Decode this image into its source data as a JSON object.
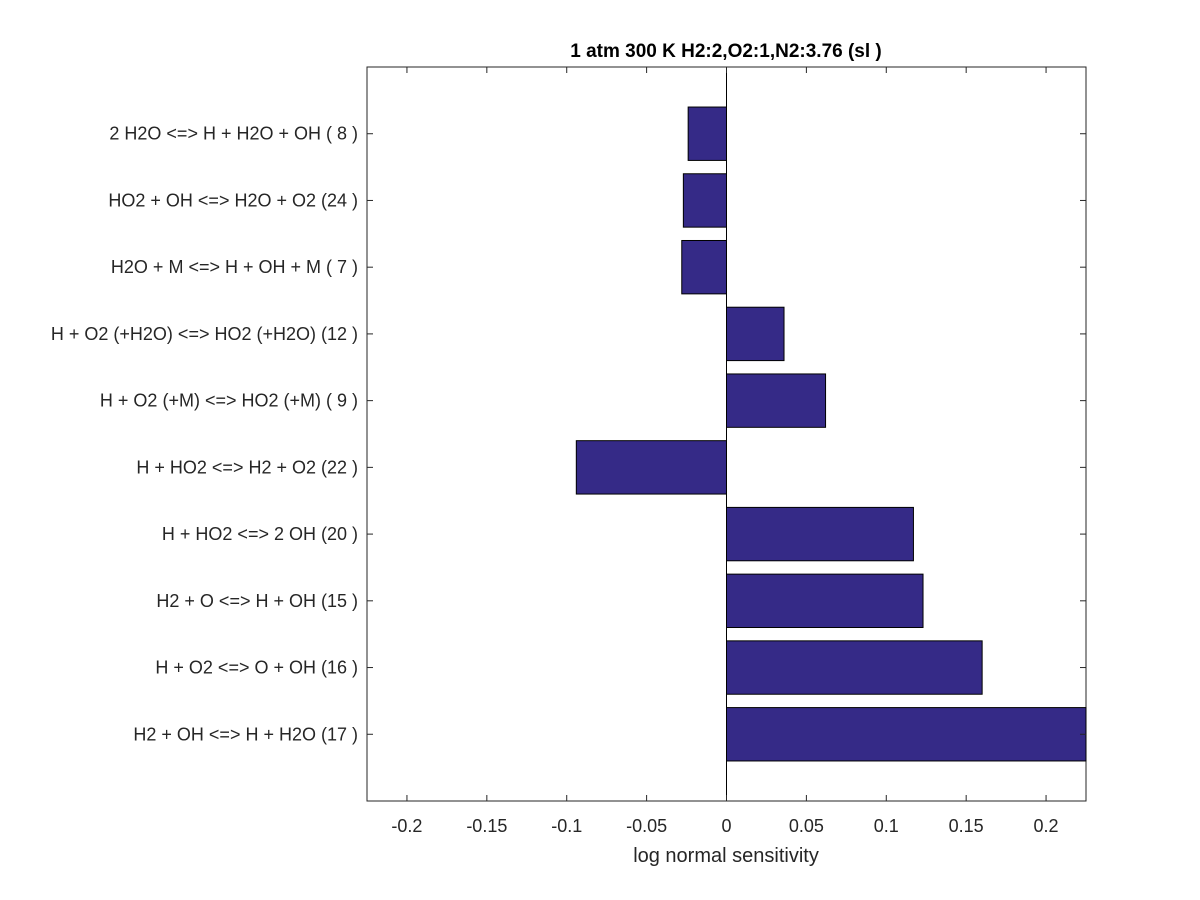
{
  "chart_data": {
    "type": "bar",
    "orientation": "horizontal",
    "title": "1 atm 300 K H2:2,O2:1,N2:3.76 (sl )",
    "xlabel": "log normal sensitivity",
    "ylabel": "",
    "xlim": [
      -0.225,
      0.225
    ],
    "xticks": [
      -0.2,
      -0.15,
      -0.1,
      -0.05,
      0,
      0.05,
      0.1,
      0.15,
      0.2
    ],
    "xtick_labels": [
      "-0.2",
      "-0.15",
      "-0.1",
      "-0.05",
      "0",
      "0.05",
      "0.1",
      "0.15",
      "0.2"
    ],
    "categories": [
      "2 H2O <=> H + H2O + OH ( 8 )",
      "HO2 + OH <=> H2O + O2 (24 )",
      "H2O + M <=> H + OH + M ( 7 )",
      "H + O2 (+H2O) <=> HO2 (+H2O) (12 )",
      "H + O2 (+M) <=> HO2 (+M) ( 9 )",
      "H + HO2 <=> H2 + O2 (22 )",
      "H + HO2 <=> 2 OH (20 )",
      "H2 + O <=> H + OH (15 )",
      "H + O2 <=> O + OH (16 )",
      "H2 + OH <=> H + H2O (17 )"
    ],
    "values": [
      -0.024,
      -0.027,
      -0.028,
      0.036,
      0.062,
      -0.094,
      0.117,
      0.123,
      0.16,
      0.225
    ],
    "bar_color": "#352a87",
    "grid": false
  }
}
